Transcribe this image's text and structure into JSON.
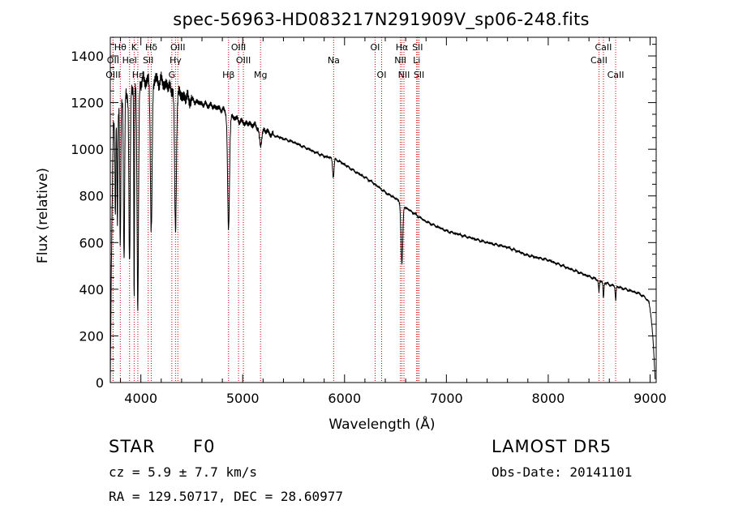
{
  "chart_data": {
    "type": "line",
    "title": "spec-56963-HD083217N291909V_sp06-248.fits",
    "xlabel": "Wavelength (Å)",
    "ylabel": "Flux (relative)",
    "xlim": [
      3700,
      9060
    ],
    "ylim": [
      0,
      1480
    ],
    "xticks": [
      "4000",
      "5000",
      "6000",
      "7000",
      "8000",
      "9000"
    ],
    "yticks": [
      "0",
      "200",
      "400",
      "600",
      "800",
      "1000",
      "1200",
      "1400"
    ],
    "grid": false,
    "line_color": "#000000",
    "marker_color": "#cc0000",
    "continuum": [
      [
        3700,
        0
      ],
      [
        3710,
        480
      ],
      [
        3730,
        1100
      ],
      [
        3760,
        1150
      ],
      [
        3800,
        1200
      ],
      [
        3850,
        1230
      ],
      [
        3900,
        1260
      ],
      [
        4000,
        1290
      ],
      [
        4100,
        1300
      ],
      [
        4200,
        1290
      ],
      [
        4300,
        1260
      ],
      [
        4400,
        1230
      ],
      [
        4500,
        1210
      ],
      [
        4600,
        1195
      ],
      [
        4700,
        1185
      ],
      [
        4800,
        1170
      ],
      [
        4900,
        1140
      ],
      [
        5000,
        1115
      ],
      [
        5100,
        1105
      ],
      [
        5200,
        1085
      ],
      [
        5300,
        1060
      ],
      [
        5400,
        1045
      ],
      [
        5500,
        1030
      ],
      [
        5600,
        1010
      ],
      [
        5700,
        990
      ],
      [
        5800,
        970
      ],
      [
        5900,
        960
      ],
      [
        6000,
        935
      ],
      [
        6100,
        905
      ],
      [
        6200,
        880
      ],
      [
        6300,
        850
      ],
      [
        6400,
        815
      ],
      [
        6500,
        790
      ],
      [
        6600,
        750
      ],
      [
        6700,
        720
      ],
      [
        6800,
        690
      ],
      [
        6900,
        670
      ],
      [
        7000,
        650
      ],
      [
        7200,
        625
      ],
      [
        7400,
        600
      ],
      [
        7600,
        580
      ],
      [
        7800,
        545
      ],
      [
        8000,
        525
      ],
      [
        8200,
        490
      ],
      [
        8400,
        455
      ],
      [
        8600,
        420
      ],
      [
        8800,
        395
      ],
      [
        8900,
        380
      ],
      [
        8950,
        365
      ],
      [
        8990,
        345
      ],
      [
        9010,
        280
      ],
      [
        9030,
        180
      ],
      [
        9050,
        20
      ]
    ],
    "absorption_lines": [
      [
        3750,
        420,
        6
      ],
      [
        3770,
        500,
        6
      ],
      [
        3798,
        620,
        7
      ],
      [
        3835,
        700,
        8
      ],
      [
        3889,
        760,
        9
      ],
      [
        3934,
        930,
        5
      ],
      [
        3970,
        980,
        10
      ],
      [
        4102,
        650,
        12
      ],
      [
        4340,
        600,
        12
      ],
      [
        4861,
        500,
        13
      ],
      [
        5175,
        80,
        15
      ],
      [
        5890,
        80,
        10
      ],
      [
        6563,
        260,
        12
      ],
      [
        8498,
        50,
        6
      ],
      [
        8542,
        70,
        6
      ],
      [
        8662,
        60,
        6
      ]
    ],
    "line_markers": [
      {
        "label": "Hθ",
        "wavelength": 3798,
        "row": 1
      },
      {
        "label": "OII",
        "wavelength": 3727,
        "row": 2
      },
      {
        "label": "OIII",
        "wavelength": 3727,
        "row": 3
      },
      {
        "label": "K",
        "wavelength": 3934,
        "row": 1
      },
      {
        "label": "HeI",
        "wavelength": 3889,
        "row": 2
      },
      {
        "label": "Hε",
        "wavelength": 3970,
        "row": 3
      },
      {
        "label": "Hδ",
        "wavelength": 4102,
        "row": 1
      },
      {
        "label": "SII",
        "wavelength": 4072,
        "row": 2
      },
      {
        "label": "OIII",
        "wavelength": 4363,
        "row": 1
      },
      {
        "label": "Hγ",
        "wavelength": 4340,
        "row": 2
      },
      {
        "label": "G",
        "wavelength": 4304,
        "row": 3
      },
      {
        "label": "OIII",
        "wavelength": 4959,
        "row": 1
      },
      {
        "label": "OIII",
        "wavelength": 5007,
        "row": 2
      },
      {
        "label": "Hβ",
        "wavelength": 4861,
        "row": 3
      },
      {
        "label": "Mg",
        "wavelength": 5175,
        "row": 3
      },
      {
        "label": "Na",
        "wavelength": 5893,
        "row": 2
      },
      {
        "label": "OI",
        "wavelength": 6300,
        "row": 1
      },
      {
        "label": "OI",
        "wavelength": 6364,
        "row": 3
      },
      {
        "label": "Hα",
        "wavelength": 6563,
        "row": 1
      },
      {
        "label": "NII",
        "wavelength": 6548,
        "row": 2
      },
      {
        "label": "NII",
        "wavelength": 6583,
        "row": 3
      },
      {
        "label": "SII",
        "wavelength": 6717,
        "row": 1
      },
      {
        "label": "Li",
        "wavelength": 6708,
        "row": 2
      },
      {
        "label": "SII",
        "wavelength": 6731,
        "row": 3
      },
      {
        "label": "CaII",
        "wavelength": 8542,
        "row": 1
      },
      {
        "label": "CaII",
        "wavelength": 8498,
        "row": 2
      },
      {
        "label": "CaII",
        "wavelength": 8662,
        "row": 3
      }
    ]
  },
  "info": {
    "class": "STAR",
    "subclass": "F0",
    "survey": "LAMOST DR5",
    "cz": "cz = 5.9 ± 7.7 km/s",
    "obs_date": "Obs-Date: 20141101",
    "coords": "RA = 129.50717, DEC =  28.60977"
  }
}
